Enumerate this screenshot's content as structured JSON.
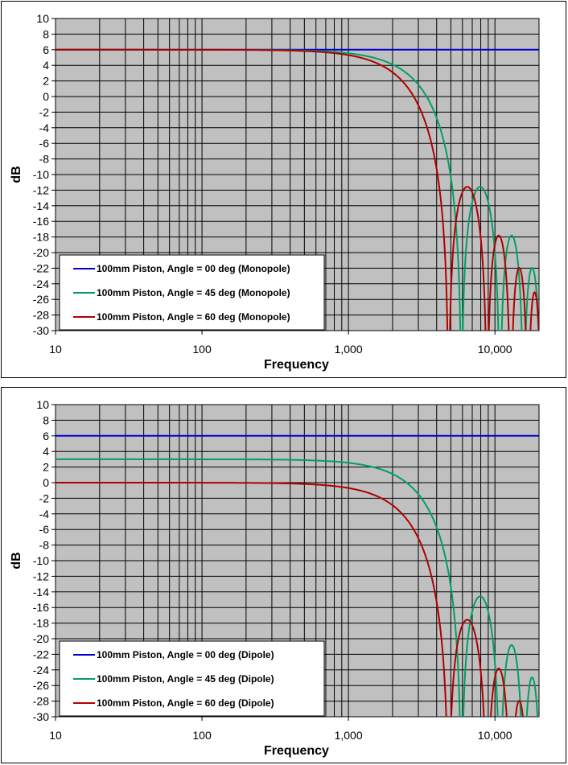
{
  "chart_data": [
    {
      "type": "line",
      "xlabel": "Frequency",
      "ylabel": "dB",
      "x_scale": "log",
      "xlim": [
        10,
        20000
      ],
      "ylim": [
        -30,
        10
      ],
      "x_ticks": [
        10,
        100,
        1000,
        10000
      ],
      "x_tick_labels": [
        "10",
        "100",
        "1,000",
        "10,000"
      ],
      "y_ticks": [
        -30,
        -28,
        -26,
        -24,
        -22,
        -20,
        -18,
        -16,
        -14,
        -12,
        -10,
        -8,
        -6,
        -4,
        -2,
        0,
        2,
        4,
        6,
        8,
        10
      ],
      "grid": true,
      "plot_background": "#c0c0c0",
      "legend_position": "bottom-left",
      "series": [
        {
          "name": "100mm Piston, Angle = 00 deg (Monopole)",
          "color": "#0000cc",
          "base_db": 6,
          "angle_deg": 0
        },
        {
          "name": "100mm Piston, Angle = 45 deg (Monopole)",
          "color": "#00a060",
          "base_db": 6,
          "angle_deg": 45
        },
        {
          "name": "100mm Piston, Angle = 60 deg (Monopole)",
          "color": "#b00000",
          "base_db": 6,
          "angle_deg": 60
        }
      ]
    },
    {
      "type": "line",
      "xlabel": "Frequency",
      "ylabel": "dB",
      "x_scale": "log",
      "xlim": [
        10,
        20000
      ],
      "ylim": [
        -30,
        10
      ],
      "x_ticks": [
        10,
        100,
        1000,
        10000
      ],
      "x_tick_labels": [
        "10",
        "100",
        "1,000",
        "10,000"
      ],
      "y_ticks": [
        -30,
        -28,
        -26,
        -24,
        -22,
        -20,
        -18,
        -16,
        -14,
        -12,
        -10,
        -8,
        -6,
        -4,
        -2,
        0,
        2,
        4,
        6,
        8,
        10
      ],
      "grid": true,
      "plot_background": "#c0c0c0",
      "legend_position": "bottom-left",
      "series": [
        {
          "name": "100mm Piston, Angle = 00 deg (Dipole)",
          "color": "#0000cc",
          "base_db": 6,
          "angle_deg": 0
        },
        {
          "name": "100mm Piston, Angle = 45 deg (Dipole)",
          "color": "#00a060",
          "base_db": 3,
          "angle_deg": 45
        },
        {
          "name": "100mm Piston, Angle = 60 deg (Dipole)",
          "color": "#b00000",
          "base_db": 0,
          "angle_deg": 60
        }
      ]
    }
  ]
}
